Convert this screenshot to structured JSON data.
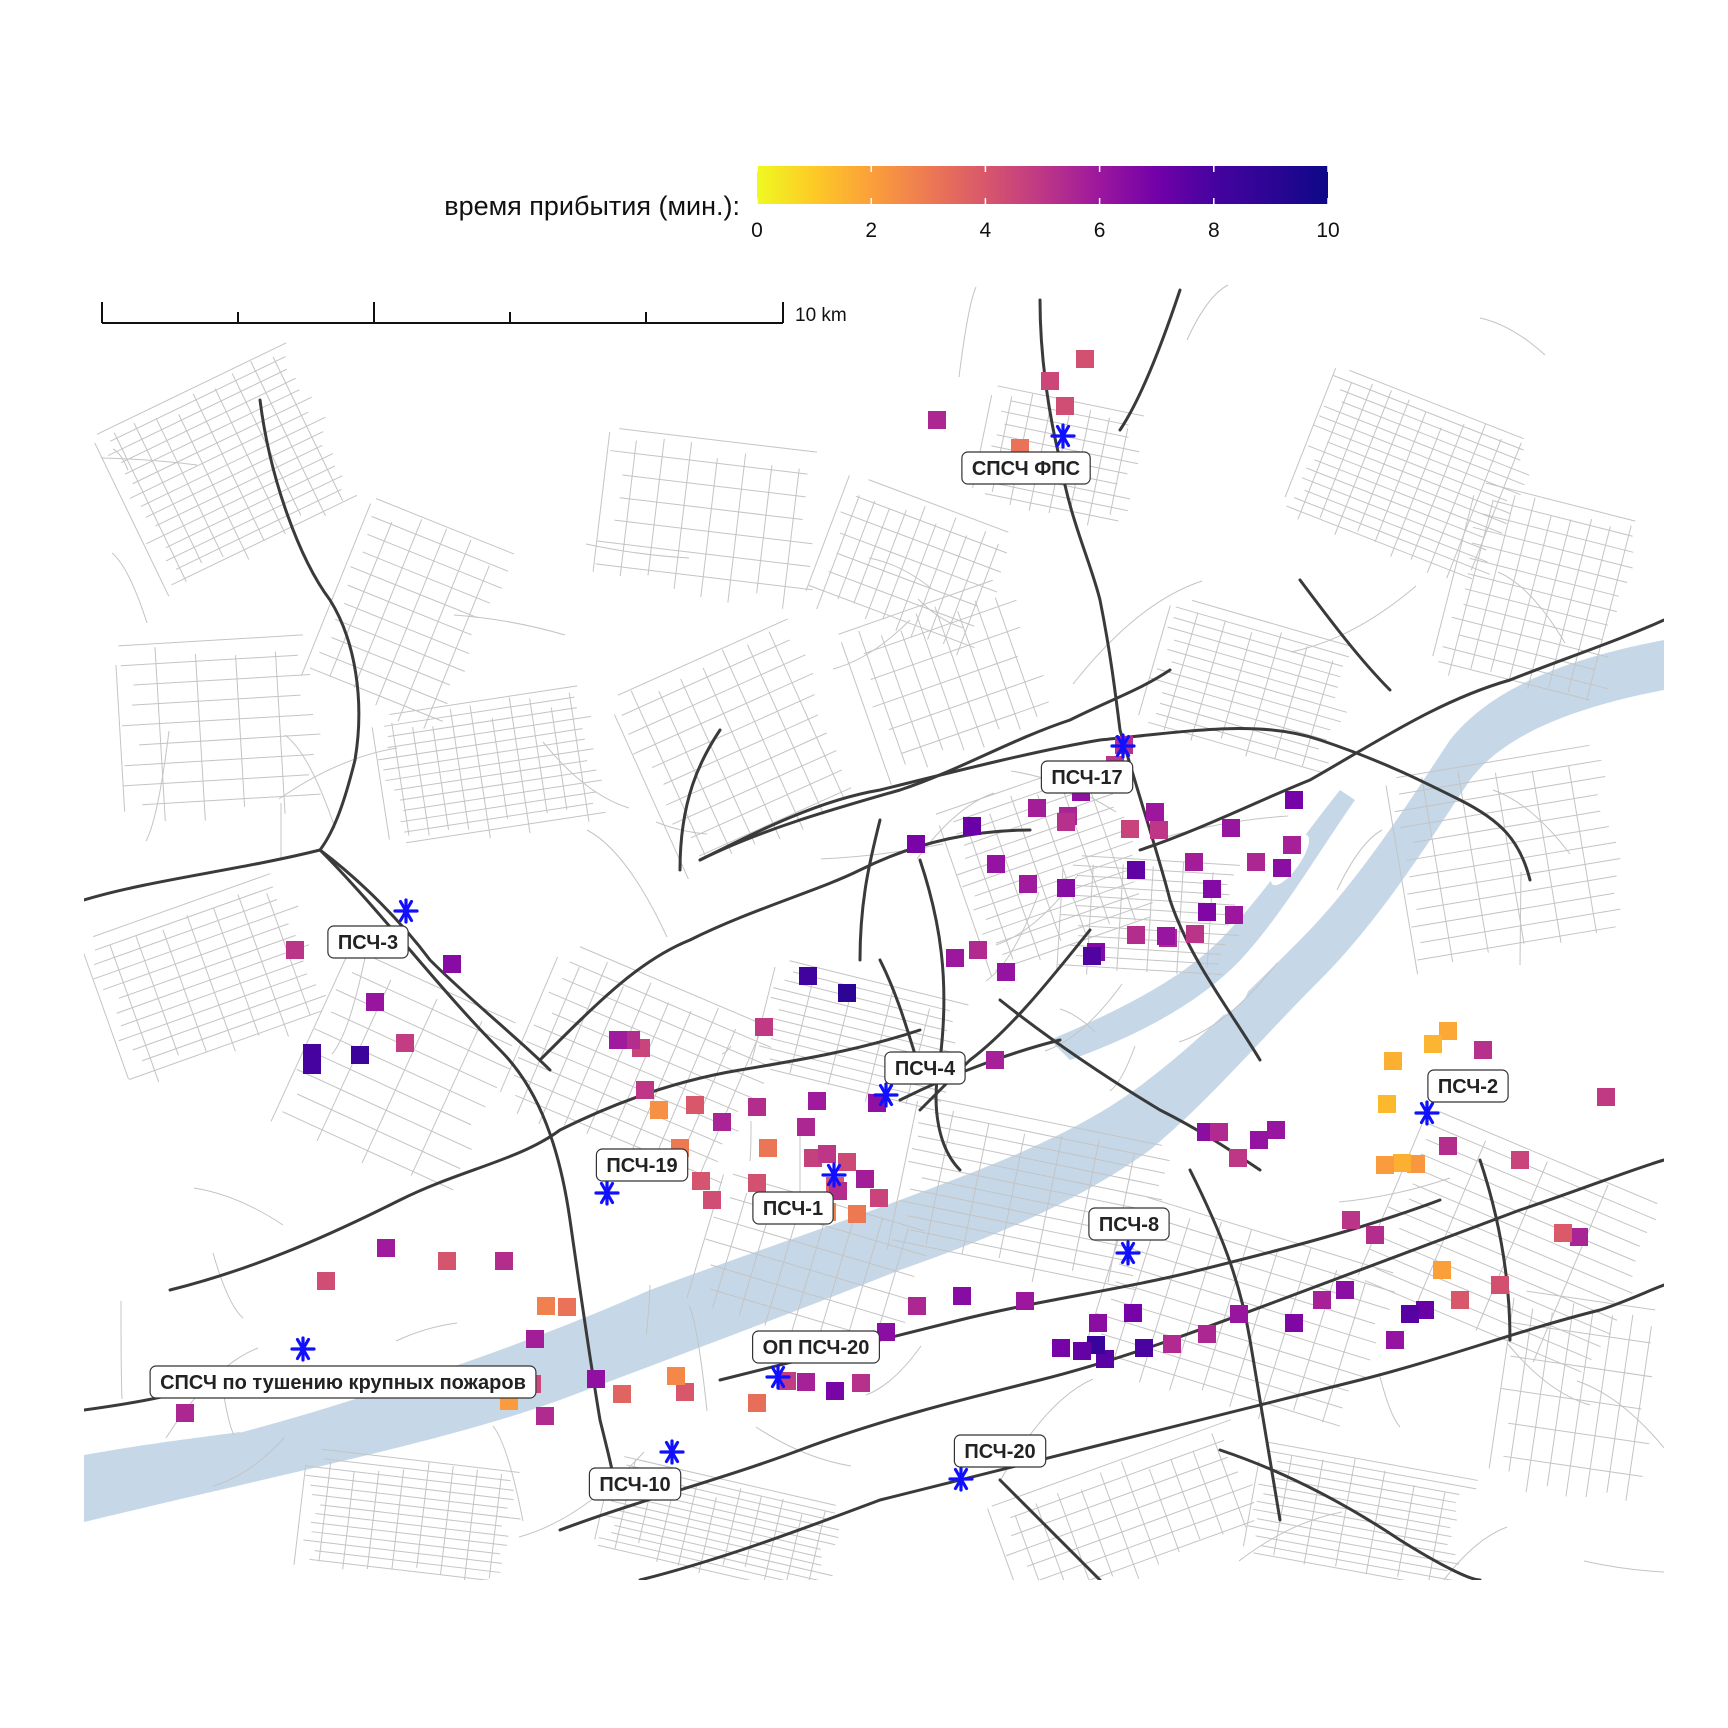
{
  "legend": {
    "title": "время прибытия (мин.):",
    "ticks": [
      "0",
      "2",
      "4",
      "6",
      "8",
      "10"
    ],
    "range": [
      0,
      10
    ]
  },
  "scalebar": {
    "label": "10 km"
  },
  "colors": {
    "river": "#c6d8e8",
    "road_major": "#3a3a3a",
    "road_minor": "#c4c4c4",
    "station_marker": "#1010ff",
    "label_box": "#ffffff",
    "label_border": "#333333"
  },
  "stations": [
    {
      "name": "СПСЧ ФПС"
    },
    {
      "name": "ПСЧ-17"
    },
    {
      "name": "ПСЧ-3"
    },
    {
      "name": "ПСЧ-4"
    },
    {
      "name": "ПСЧ-2"
    },
    {
      "name": "ПСЧ-19"
    },
    {
      "name": "ПСЧ-1"
    },
    {
      "name": "ПСЧ-8"
    },
    {
      "name": "ОП ПСЧ-20"
    },
    {
      "name": "СПСЧ по тушению крупных пожаров"
    },
    {
      "name": "ПСЧ-20"
    },
    {
      "name": "ПСЧ-10"
    }
  ],
  "incidents_minutes": [
    4.2,
    4.5,
    4.3,
    5.5,
    3.2,
    5.2,
    5.0,
    6.3,
    5.8,
    5.6,
    6.0,
    5.0,
    4.6,
    5.2,
    6.8,
    7.2,
    6.2,
    5.9,
    6.5,
    7.4,
    5.8,
    6.1,
    6.9,
    5.7,
    6.4,
    5.5,
    6.6,
    6.7,
    6.0,
    5.1,
    5.5,
    5.3,
    6.1,
    6.6,
    7.8,
    5.4,
    6.0,
    6.2,
    8.2,
    9.0,
    5.7,
    6.3,
    5.9,
    4.9,
    5.3,
    5.5,
    4.7,
    5.0,
    4.4,
    5.8,
    3.9,
    4.6,
    3.0,
    2.7,
    5.3,
    3.1,
    4.0,
    5.6,
    4.2,
    3.0,
    2.4,
    4.1,
    4.3,
    5.0,
    4.6,
    5.3,
    5.9,
    6.4,
    5.0,
    6.2,
    6.1,
    5.4,
    1.8,
    1.5,
    1.6,
    1.4,
    5.2,
    4.9,
    5.6,
    3.9,
    5.3,
    4.2,
    2.0,
    4.6,
    2.2,
    1.6,
    2.1,
    5.1,
    5.3,
    4.0,
    7.2,
    7.6,
    6.2,
    6.4,
    5.7,
    6.7,
    6.1,
    5.5,
    5.4,
    6.9,
    6.4,
    7.6,
    7.9,
    8.5,
    7.3,
    6.9,
    6.0,
    6.5,
    5.5,
    6.4,
    5.2,
    6.8,
    5.7,
    4.8,
    3.3,
    4.0,
    2.6,
    3.6,
    6.3,
    5.4,
    4.5,
    2.1,
    3.2,
    2.8,
    4.1,
    5.8,
    5.3,
    5.9,
    4.3,
    5.5,
    5.1,
    6.1,
    4.8,
    6.5
  ]
}
